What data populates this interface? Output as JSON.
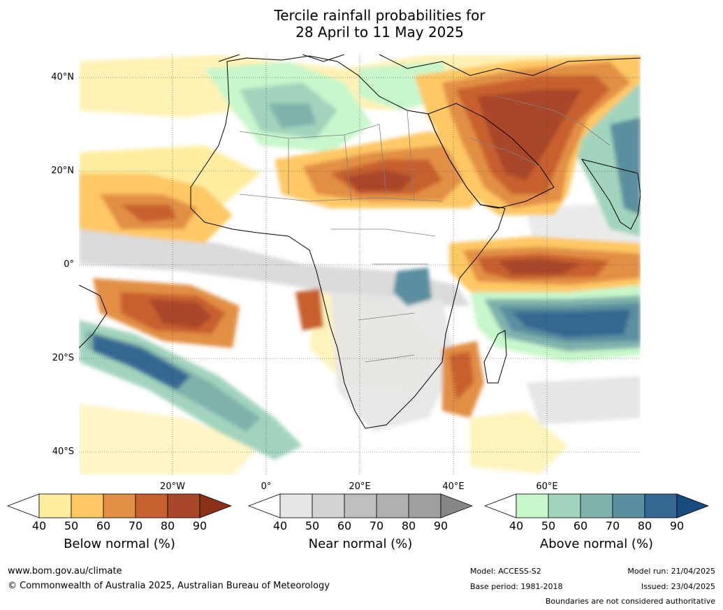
{
  "title_line1": "Tercile rainfall probabilities for",
  "title_line2": "28 April to 11 May 2025",
  "lat_labels": [
    "40°N",
    "20°N",
    "0°",
    "20°S",
    "40°S"
  ],
  "lon_labels": [
    "20°W",
    "0°",
    "20°E",
    "40°E",
    "60°E"
  ],
  "colorbars": [
    {
      "title": "Below normal (%)",
      "ticks": [
        "40",
        "50",
        "60",
        "70",
        "80",
        "90"
      ],
      "colors": [
        "#ffffff",
        "#ffeea0",
        "#fec865",
        "#e28f45",
        "#c7602f",
        "#a9472a",
        "#8c3018"
      ]
    },
    {
      "title": "Near normal (%)",
      "ticks": [
        "40",
        "50",
        "60",
        "70",
        "80",
        "90"
      ],
      "colors": [
        "#ffffff",
        "#e6e6e6",
        "#d2d2d2",
        "#bfbfbf",
        "#b0b0b0",
        "#9f9f9f",
        "#878787"
      ]
    },
    {
      "title": "Above normal (%)",
      "ticks": [
        "40",
        "50",
        "60",
        "70",
        "80",
        "90"
      ],
      "colors": [
        "#ffffff",
        "#c8f7cb",
        "#a2d4bd",
        "#80b2ac",
        "#5a8f9f",
        "#346791",
        "#1a4b7e"
      ]
    }
  ],
  "footer": {
    "website": "www.bom.gov.au/climate",
    "copyright": "© Commonwealth of Australia 2025, Australian Bureau of Meteorology",
    "model": "Model: ACCESS-S2",
    "base_period": "Base period: 1981-2018",
    "model_run": "Model run: 21/04/2025",
    "issued": "Issued: 23/04/2025",
    "disclaimer": "Boundaries are not considered authoritative"
  }
}
